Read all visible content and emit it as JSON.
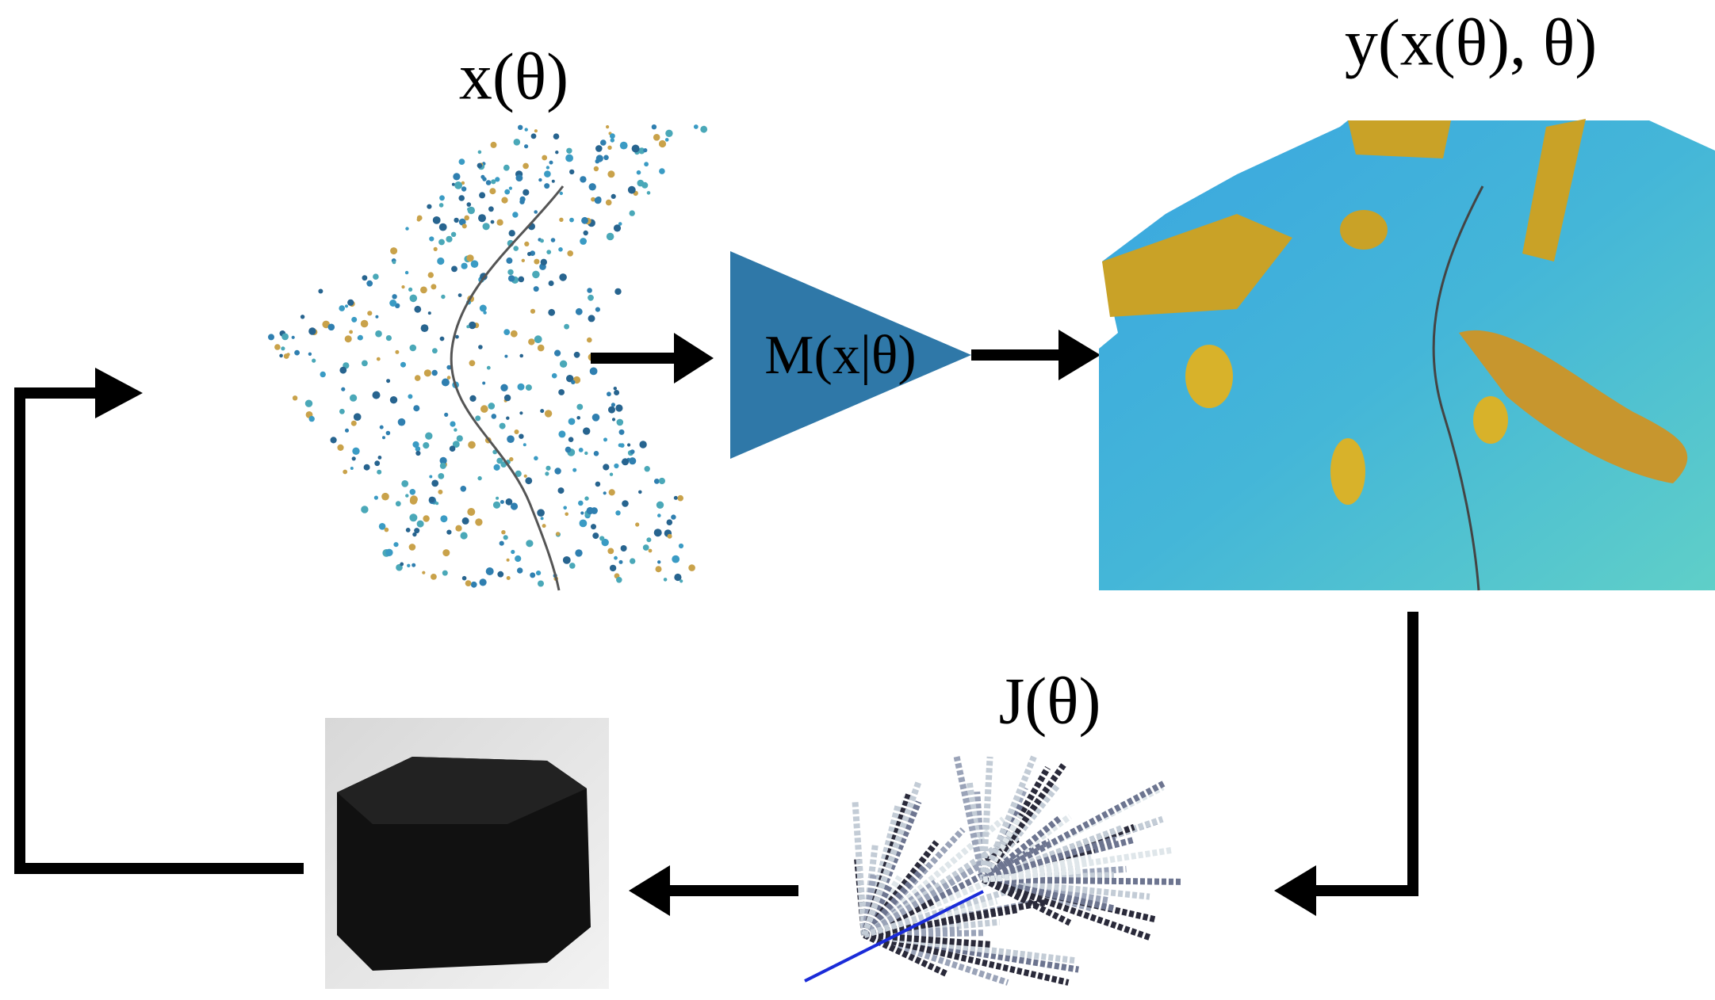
{
  "labels": {
    "state": "x(θ)",
    "model": "M(x|θ)",
    "output": "y(x(θ), θ)",
    "objective": "J(θ)"
  }
}
